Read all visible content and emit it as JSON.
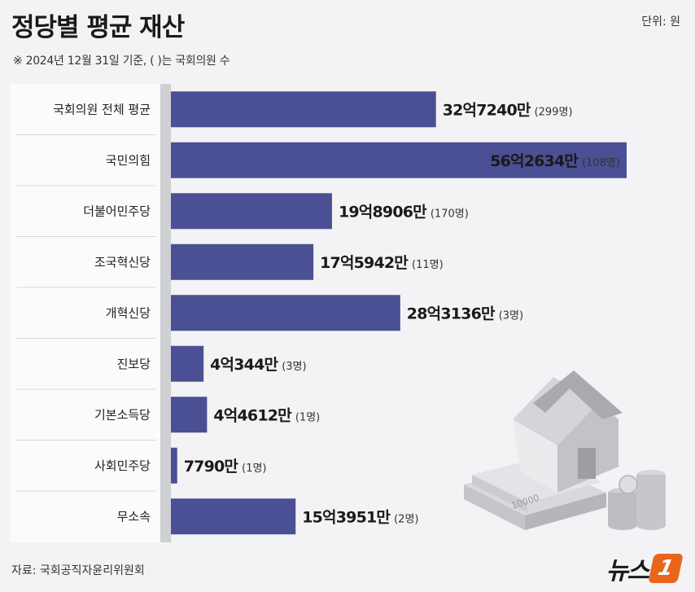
{
  "header": {
    "title": "정당별 평균 재산",
    "unit": "단위: 원",
    "subtitle": "※ 2024년 12월 31일 기준, ( )는 국회의원 수"
  },
  "colors": {
    "bar": "#4b4f93",
    "background": "#f3f3f5",
    "axis_strip": "#cfd0d4",
    "logo_accent": "#e8661c"
  },
  "chart_data": {
    "type": "bar",
    "orientation": "horizontal",
    "categories": [
      "국회의원 전체 평균",
      "국민의힘",
      "더불어민주당",
      "조국혁신당",
      "개혁신당",
      "진보당",
      "기본소득당",
      "사회민주당",
      "무소속"
    ],
    "values": [
      327240,
      562634,
      198906,
      175942,
      283136,
      40344,
      44612,
      7790,
      153951
    ],
    "value_labels": [
      "32억7240만",
      "56억2634만",
      "19억8906만",
      "17억5942만",
      "28억3136만",
      "4억344만",
      "4억4612만",
      "7790만",
      "15억3951만"
    ],
    "member_counts": [
      "(299명)",
      "(108명)",
      "(170명)",
      "(11명)",
      "(3명)",
      "(3명)",
      "(1명)",
      "(1명)",
      "(2명)"
    ],
    "value_unit": "만원",
    "xlim": [
      0,
      562634
    ]
  },
  "footer": {
    "source": "자료: 국회공직자윤리위원회",
    "logo_text": "뉴스",
    "logo_mark": "1"
  },
  "illustration": {
    "banknote_label": "10000",
    "icons": [
      "house-icon",
      "banknote-stack-icon",
      "coin-stack-icon"
    ]
  }
}
